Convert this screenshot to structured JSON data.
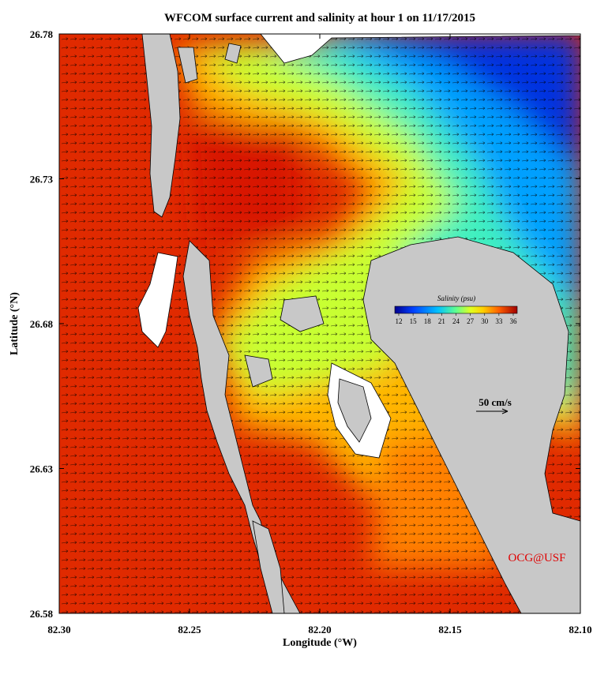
{
  "title": "WFCOM surface current and salinity at hour 1 on 11/17/2015",
  "x_axis": {
    "label": "Longitude (°W)",
    "lim": [
      82.3,
      82.1
    ],
    "ticks": [
      {
        "value": 82.3,
        "label": "82.30"
      },
      {
        "value": 82.25,
        "label": "82.25"
      },
      {
        "value": 82.2,
        "label": "82.20"
      },
      {
        "value": 82.15,
        "label": "82.15"
      },
      {
        "value": 82.1,
        "label": "82.10"
      }
    ]
  },
  "y_axis": {
    "label": "Latitude (°N)",
    "lim": [
      26.58,
      26.78
    ],
    "ticks": [
      26.58,
      26.63,
      26.68,
      26.73,
      26.78
    ]
  },
  "colorbar": {
    "title": "Salinity (psu)",
    "lim": [
      12,
      36
    ],
    "ticks": [
      12,
      15,
      18,
      21,
      24,
      27,
      30,
      33,
      36
    ]
  },
  "scale_label": "50 cm/s",
  "credit": "OCG@USF"
}
